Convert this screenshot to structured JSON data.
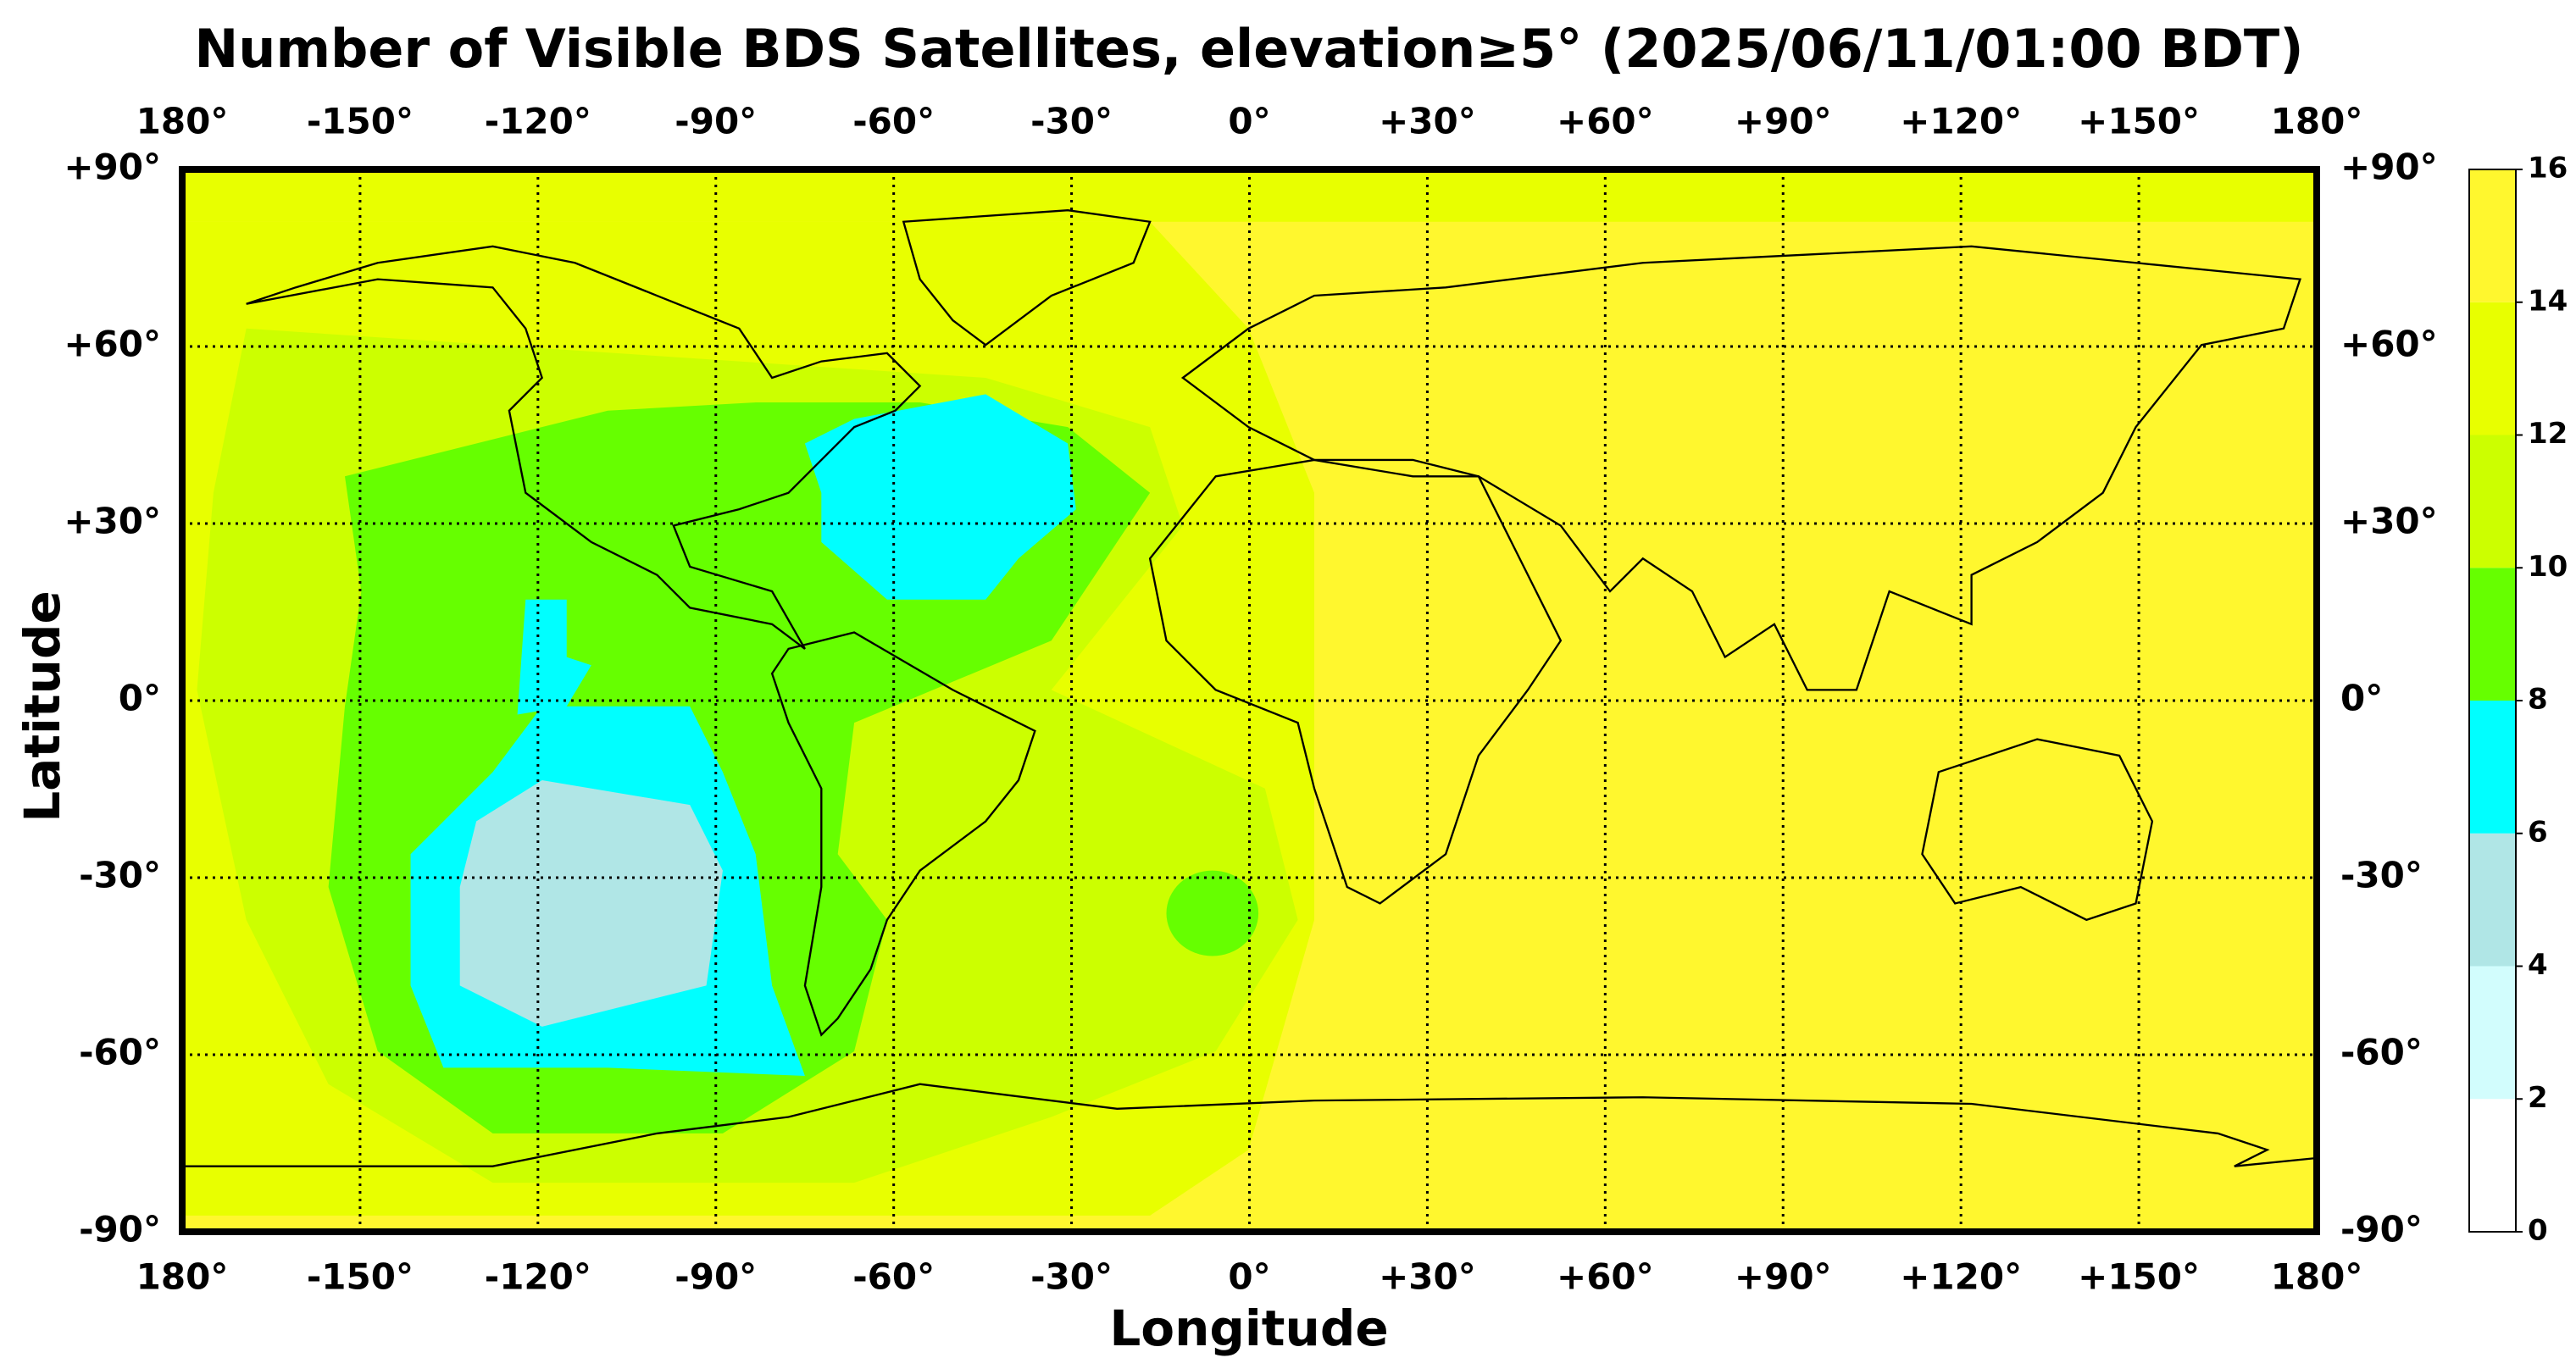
{
  "chart_data": {
    "type": "map",
    "title": "Number of Visible BDS Satellites, elevation≥5° (2025/06/11/01:00 BDT)",
    "xlabel": "Longitude",
    "ylabel": "Latitude",
    "xlim": [
      -180,
      180
    ],
    "ylim": [
      -90,
      90
    ],
    "xticks": [
      {
        "value": -180,
        "label": "180°"
      },
      {
        "value": -150,
        "label": "-150°"
      },
      {
        "value": -120,
        "label": "-120°"
      },
      {
        "value": -90,
        "label": "-90°"
      },
      {
        "value": -60,
        "label": "-60°"
      },
      {
        "value": -30,
        "label": "-30°"
      },
      {
        "value": 0,
        "label": "0°"
      },
      {
        "value": 30,
        "label": "+30°"
      },
      {
        "value": 60,
        "label": "+60°"
      },
      {
        "value": 90,
        "label": "+90°"
      },
      {
        "value": 120,
        "label": "+120°"
      },
      {
        "value": 150,
        "label": "+150°"
      },
      {
        "value": 180,
        "label": "180°"
      }
    ],
    "yticks": [
      {
        "value": -90,
        "label": "-90°"
      },
      {
        "value": -60,
        "label": "-60°"
      },
      {
        "value": -30,
        "label": "-30°"
      },
      {
        "value": 0,
        "label": "0°"
      },
      {
        "value": 30,
        "label": "+30°"
      },
      {
        "value": 60,
        "label": "+60°"
      },
      {
        "value": 90,
        "label": "+90°"
      }
    ],
    "grid": true,
    "colorbar": {
      "levels": [
        0,
        2,
        4,
        6,
        8,
        10,
        12,
        14,
        16
      ],
      "colors": [
        "#ffffff",
        "#d2fdfd",
        "#b0e6e6",
        "#00ffff",
        "#66ff00",
        "#ccff00",
        "#e8ff00",
        "#fff72e"
      ]
    }
  }
}
